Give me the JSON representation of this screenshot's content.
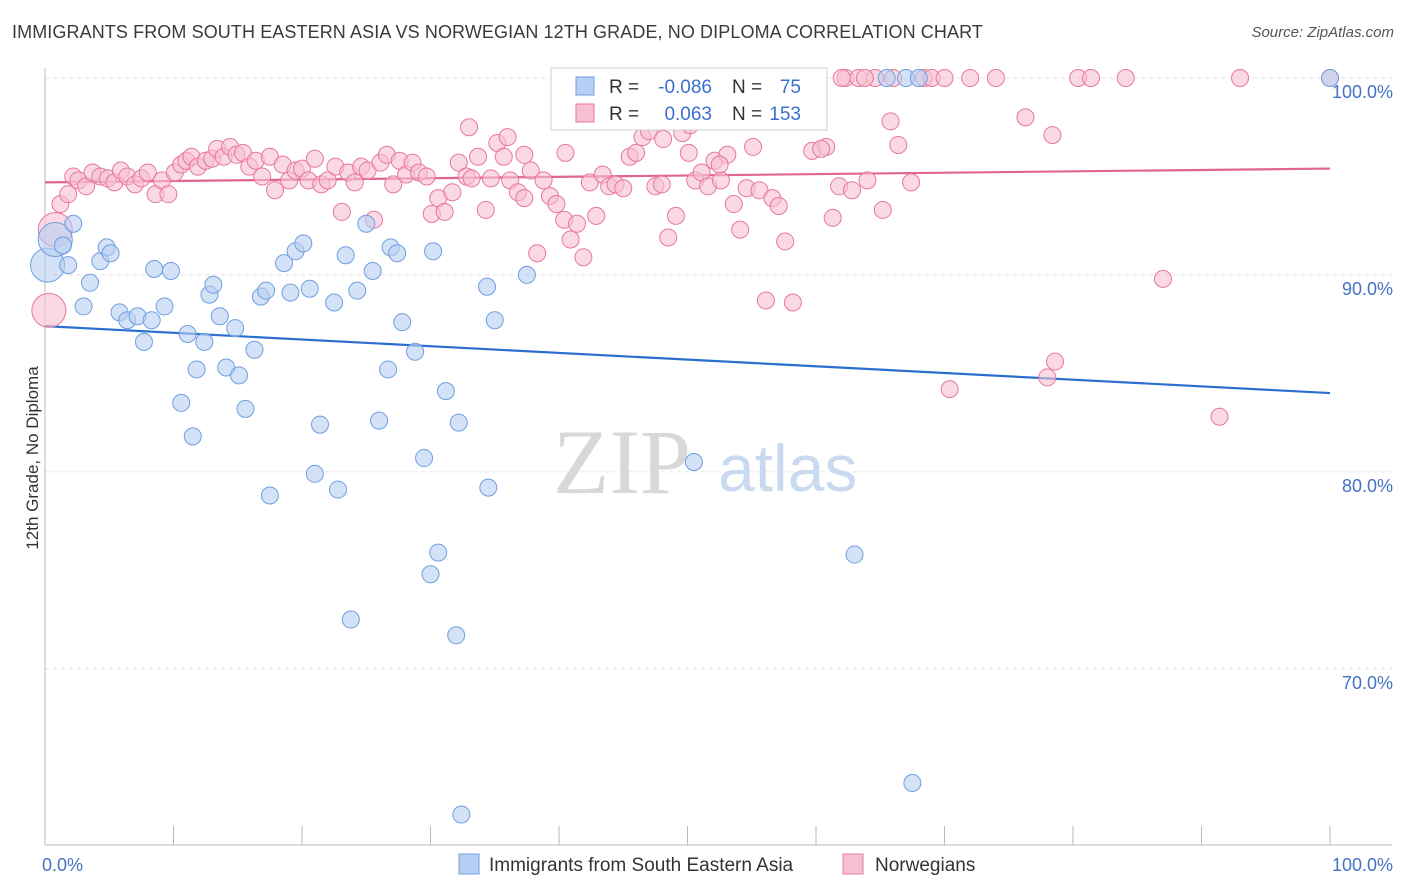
{
  "title": "IMMIGRANTS FROM SOUTH EASTERN ASIA VS NORWEGIAN 12TH GRADE, NO DIPLOMA CORRELATION CHART",
  "source": "Source: ZipAtlas.com",
  "watermark": {
    "zip": "ZIP",
    "atlas": "atlas"
  },
  "colors": {
    "blue": "#6f9fe0",
    "blue_fill": "#b7cff2",
    "pink": "#e8779c",
    "pink_fill": "#f6c0d2",
    "blue_line": "#2a6fcf",
    "pink_line": "#e0668e",
    "tick_text": "#4472c4"
  },
  "legend": {
    "rows": [
      {
        "r_label": "R =",
        "r_value": "-0.086",
        "n_label": "N =",
        "n_value": "75"
      },
      {
        "r_label": "R =",
        "r_value": "0.063",
        "n_label": "N =",
        "n_value": "153"
      }
    ]
  },
  "bottom_legend": [
    "Immigrants from South Eastern Asia",
    "Norwegians"
  ],
  "chart_data": {
    "type": "scatter",
    "ylabel": "12th Grade, No Diploma",
    "xlim": [
      0,
      100
    ],
    "ylim": [
      61,
      102
    ],
    "x_tick_labels": [
      "0.0%",
      "100.0%"
    ],
    "y_ticks": [
      70,
      80,
      90,
      100
    ],
    "y_tick_labels": [
      "70.0%",
      "80.0%",
      "90.0%",
      "100.0%"
    ],
    "series": [
      {
        "name": "Immigrants from South Eastern Asia",
        "trend": {
          "x": [
            0,
            100
          ],
          "y": [
            87.4,
            84.0
          ]
        },
        "points": [
          [
            0.2,
            90.5
          ],
          [
            0.8,
            91.8
          ],
          [
            1.4,
            91.5
          ],
          [
            1.8,
            90.5
          ],
          [
            2.2,
            92.6
          ],
          [
            3.0,
            88.4
          ],
          [
            3.5,
            89.6
          ],
          [
            4.3,
            90.7
          ],
          [
            4.8,
            91.4
          ],
          [
            5.1,
            91.1
          ],
          [
            5.8,
            88.1
          ],
          [
            6.4,
            87.7
          ],
          [
            7.2,
            87.9
          ],
          [
            7.7,
            86.6
          ],
          [
            8.3,
            87.7
          ],
          [
            8.5,
            90.3
          ],
          [
            9.3,
            88.4
          ],
          [
            9.8,
            90.2
          ],
          [
            10.6,
            83.5
          ],
          [
            11.1,
            87.0
          ],
          [
            11.5,
            81.8
          ],
          [
            11.8,
            85.2
          ],
          [
            12.4,
            86.6
          ],
          [
            12.8,
            89.0
          ],
          [
            13.1,
            89.5
          ],
          [
            13.6,
            87.9
          ],
          [
            14.1,
            85.3
          ],
          [
            14.8,
            87.3
          ],
          [
            15.1,
            84.9
          ],
          [
            15.6,
            83.2
          ],
          [
            16.3,
            86.2
          ],
          [
            16.8,
            88.9
          ],
          [
            17.2,
            89.2
          ],
          [
            17.5,
            78.8
          ],
          [
            18.6,
            90.6
          ],
          [
            19.1,
            89.1
          ],
          [
            19.5,
            91.2
          ],
          [
            20.1,
            91.6
          ],
          [
            20.6,
            89.3
          ],
          [
            21.0,
            79.9
          ],
          [
            21.4,
            82.4
          ],
          [
            22.5,
            88.6
          ],
          [
            22.8,
            79.1
          ],
          [
            23.4,
            91.0
          ],
          [
            23.8,
            72.5
          ],
          [
            24.3,
            89.2
          ],
          [
            25.0,
            92.6
          ],
          [
            25.5,
            90.2
          ],
          [
            26.0,
            82.6
          ],
          [
            26.7,
            85.2
          ],
          [
            26.9,
            91.4
          ],
          [
            27.4,
            91.1
          ],
          [
            27.8,
            87.6
          ],
          [
            28.8,
            86.1
          ],
          [
            29.5,
            80.7
          ],
          [
            30.0,
            74.8
          ],
          [
            30.2,
            91.2
          ],
          [
            30.6,
            75.9
          ],
          [
            31.2,
            84.1
          ],
          [
            32.0,
            71.7
          ],
          [
            32.2,
            82.5
          ],
          [
            32.4,
            62.6
          ],
          [
            34.4,
            89.4
          ],
          [
            34.5,
            79.2
          ],
          [
            35.0,
            87.7
          ],
          [
            37.5,
            90.0
          ],
          [
            42.0,
            100.0
          ],
          [
            50.5,
            80.5
          ],
          [
            60.0,
            100.0
          ],
          [
            63.0,
            75.8
          ],
          [
            65.5,
            100.0
          ],
          [
            67.0,
            100.0
          ],
          [
            67.5,
            64.2
          ],
          [
            68.0,
            100.0
          ],
          [
            100.0,
            100.0
          ]
        ],
        "sizes": {
          "large": [
            [
              0.2,
              90.5
            ],
            [
              0.8,
              91.8
            ]
          ]
        }
      },
      {
        "name": "Norwegians",
        "trend": {
          "x": [
            0,
            100
          ],
          "y": [
            94.7,
            95.4
          ]
        },
        "points": [
          [
            0.3,
            88.2
          ],
          [
            0.8,
            92.3
          ],
          [
            1.2,
            93.6
          ],
          [
            1.8,
            94.1
          ],
          [
            2.2,
            95.0
          ],
          [
            2.6,
            94.8
          ],
          [
            3.2,
            94.5
          ],
          [
            3.7,
            95.2
          ],
          [
            4.3,
            95.0
          ],
          [
            4.9,
            94.9
          ],
          [
            5.4,
            94.7
          ],
          [
            5.9,
            95.3
          ],
          [
            6.4,
            95.0
          ],
          [
            7.0,
            94.6
          ],
          [
            7.5,
            94.9
          ],
          [
            8.0,
            95.2
          ],
          [
            8.6,
            94.1
          ],
          [
            9.1,
            94.8
          ],
          [
            9.6,
            94.1
          ],
          [
            10.1,
            95.2
          ],
          [
            10.6,
            95.6
          ],
          [
            11.0,
            95.8
          ],
          [
            11.4,
            96.0
          ],
          [
            11.9,
            95.5
          ],
          [
            12.5,
            95.8
          ],
          [
            13.0,
            95.9
          ],
          [
            13.4,
            96.4
          ],
          [
            13.9,
            96.0
          ],
          [
            14.4,
            96.5
          ],
          [
            14.9,
            96.1
          ],
          [
            15.4,
            96.2
          ],
          [
            15.9,
            95.5
          ],
          [
            16.4,
            95.8
          ],
          [
            16.9,
            95.0
          ],
          [
            17.5,
            96.0
          ],
          [
            17.9,
            94.3
          ],
          [
            18.5,
            95.6
          ],
          [
            19.0,
            94.8
          ],
          [
            19.5,
            95.3
          ],
          [
            20.0,
            95.4
          ],
          [
            20.5,
            94.8
          ],
          [
            21.0,
            95.9
          ],
          [
            21.5,
            94.6
          ],
          [
            22.0,
            94.8
          ],
          [
            22.6,
            95.5
          ],
          [
            23.1,
            93.2
          ],
          [
            23.6,
            95.2
          ],
          [
            24.1,
            94.7
          ],
          [
            24.6,
            95.5
          ],
          [
            25.1,
            95.3
          ],
          [
            25.6,
            92.8
          ],
          [
            26.1,
            95.7
          ],
          [
            26.6,
            96.1
          ],
          [
            27.1,
            94.6
          ],
          [
            27.6,
            95.8
          ],
          [
            28.1,
            95.1
          ],
          [
            28.6,
            95.7
          ],
          [
            29.1,
            95.2
          ],
          [
            29.7,
            95.0
          ],
          [
            30.1,
            93.1
          ],
          [
            30.6,
            93.9
          ],
          [
            31.1,
            93.2
          ],
          [
            31.7,
            94.2
          ],
          [
            32.2,
            95.7
          ],
          [
            32.8,
            95.0
          ],
          [
            33.2,
            94.9
          ],
          [
            33.7,
            96.0
          ],
          [
            34.3,
            93.3
          ],
          [
            34.7,
            94.9
          ],
          [
            35.2,
            96.7
          ],
          [
            35.7,
            96.0
          ],
          [
            36.2,
            94.8
          ],
          [
            36.8,
            94.2
          ],
          [
            37.3,
            93.9
          ],
          [
            37.8,
            95.3
          ],
          [
            38.3,
            91.1
          ],
          [
            38.8,
            94.8
          ],
          [
            39.3,
            94.0
          ],
          [
            39.8,
            93.6
          ],
          [
            40.4,
            92.8
          ],
          [
            40.9,
            91.8
          ],
          [
            41.4,
            92.6
          ],
          [
            41.9,
            90.9
          ],
          [
            42.4,
            94.7
          ],
          [
            42.9,
            93.0
          ],
          [
            43.4,
            95.1
          ],
          [
            43.9,
            94.5
          ],
          [
            44.4,
            94.6
          ],
          [
            45.0,
            94.4
          ],
          [
            45.5,
            96.0
          ],
          [
            46.0,
            96.2
          ],
          [
            46.5,
            97.0
          ],
          [
            47.0,
            97.3
          ],
          [
            47.5,
            94.5
          ],
          [
            48.0,
            94.6
          ],
          [
            48.5,
            91.9
          ],
          [
            49.1,
            93.0
          ],
          [
            49.6,
            97.2
          ],
          [
            50.1,
            96.2
          ],
          [
            50.6,
            94.8
          ],
          [
            51.1,
            95.2
          ],
          [
            51.6,
            94.5
          ],
          [
            52.1,
            95.8
          ],
          [
            52.6,
            94.8
          ],
          [
            53.1,
            96.1
          ],
          [
            53.6,
            93.6
          ],
          [
            54.1,
            92.3
          ],
          [
            54.6,
            94.4
          ],
          [
            55.1,
            96.5
          ],
          [
            55.6,
            94.3
          ],
          [
            56.1,
            88.7
          ],
          [
            56.6,
            93.9
          ],
          [
            57.1,
            93.5
          ],
          [
            57.6,
            91.7
          ],
          [
            58.2,
            88.6
          ],
          [
            58.7,
            100.0
          ],
          [
            59.2,
            100.0
          ],
          [
            59.7,
            96.3
          ],
          [
            60.2,
            100.0
          ],
          [
            60.8,
            96.5
          ],
          [
            61.3,
            92.9
          ],
          [
            61.8,
            94.5
          ],
          [
            62.3,
            100.0
          ],
          [
            62.8,
            94.3
          ],
          [
            63.3,
            100.0
          ],
          [
            64.0,
            94.8
          ],
          [
            64.6,
            100.0
          ],
          [
            65.2,
            93.3
          ],
          [
            65.8,
            97.8
          ],
          [
            66.4,
            96.6
          ],
          [
            56.5,
            100.0
          ],
          [
            55.0,
            100.0
          ],
          [
            60.0,
            100.0
          ],
          [
            62.0,
            100.0
          ],
          [
            63.8,
            100.0
          ],
          [
            66.0,
            100.0
          ],
          [
            67.4,
            94.7
          ],
          [
            68.4,
            100.0
          ],
          [
            69.0,
            100.0
          ],
          [
            70.0,
            100.0
          ],
          [
            70.4,
            84.2
          ],
          [
            72.0,
            100.0
          ],
          [
            74.0,
            100.0
          ],
          [
            76.3,
            98.0
          ],
          [
            78.4,
            97.1
          ],
          [
            78.0,
            84.8
          ],
          [
            78.6,
            85.6
          ],
          [
            80.4,
            100.0
          ],
          [
            81.4,
            100.0
          ],
          [
            84.1,
            100.0
          ],
          [
            87.0,
            89.8
          ],
          [
            91.4,
            82.8
          ],
          [
            93.0,
            100.0
          ],
          [
            37.3,
            96.1
          ],
          [
            48.1,
            96.9
          ],
          [
            50.2,
            97.6
          ],
          [
            49.0,
            97.9
          ],
          [
            60.4,
            96.4
          ],
          [
            40.5,
            96.2
          ],
          [
            33.0,
            97.5
          ],
          [
            36.0,
            97.0
          ],
          [
            52.5,
            95.6
          ],
          [
            100.0,
            100.0
          ]
        ],
        "sizes": {
          "large": [
            [
              0.3,
              88.2
            ],
            [
              0.8,
              92.3
            ]
          ]
        }
      }
    ]
  }
}
